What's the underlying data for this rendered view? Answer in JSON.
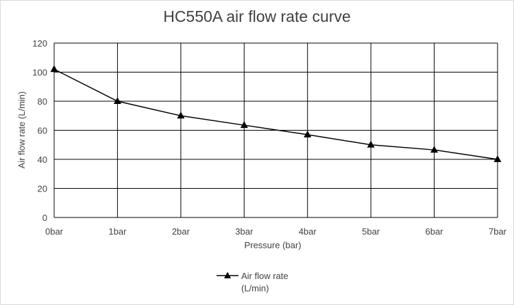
{
  "chart_data": {
    "type": "line",
    "title": "HC550A air flow rate curve",
    "xlabel": "Pressure (bar)",
    "ylabel": "Air flow rate (L/min)",
    "categories": [
      "0bar",
      "1bar",
      "2bar",
      "3bar",
      "4bar",
      "5bar",
      "6bar",
      "7bar"
    ],
    "series": [
      {
        "name": "Air flow rate (L/min)",
        "values": [
          102,
          80,
          70,
          63.5,
          57,
          50,
          46.5,
          40
        ],
        "marker": "triangle"
      }
    ],
    "yticks": [
      "0",
      "20",
      "40",
      "60",
      "80",
      "100",
      "120"
    ],
    "ylim": [
      0,
      120
    ],
    "grid": true,
    "legend_position": "bottom"
  },
  "legend": {
    "line1": "Air flow rate",
    "line2": "(L/min)"
  },
  "colors": {
    "series": "#000000",
    "grid": "#000000",
    "text": "#404040"
  }
}
